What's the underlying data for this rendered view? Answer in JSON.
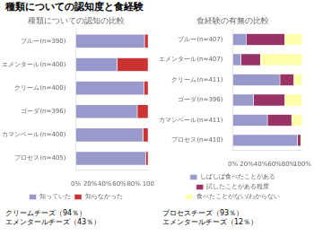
{
  "title": "種類についての認知度と食経験",
  "annotations": [
    "クリームチーズ（94％）\nエメンタールチーズ（43％）",
    "プロセスチーズ（93％）\nエメンタールチーズ（12％）"
  ],
  "chart_data": [
    {
      "type": "bar",
      "orientation": "horizontal",
      "stacked": true,
      "grid": false,
      "legend": "bottom",
      "title": "種類についての認知の比較",
      "categories": [
        "ブルー(n=390)",
        "エメンタール(n=400)",
        "クリーム(n=400)",
        "ゴーダ(n=396)",
        "カマンベール(n=400)",
        "プロセス(n=405)"
      ],
      "series": [
        {
          "name": "知っていた",
          "color": "#9999cc",
          "values": [
            95,
            57,
            94,
            85,
            93,
            97
          ]
        },
        {
          "name": "知らなかった",
          "color": "#cc3333",
          "values": [
            5,
            43,
            6,
            15,
            7,
            3
          ]
        }
      ],
      "xlim": [
        0,
        100
      ],
      "xticks": [
        {
          "value": 0,
          "label": "0%"
        },
        {
          "value": 20,
          "label": "20%"
        },
        {
          "value": 40,
          "label": "40%"
        },
        {
          "value": 60,
          "label": "60%"
        },
        {
          "value": 80,
          "label": "80%"
        },
        100
      ]
    },
    {
      "type": "bar",
      "orientation": "horizontal",
      "stacked": true,
      "grid": false,
      "legend": "bottom",
      "title": "食経験の有無の比較",
      "categories": [
        "ブルー(n=407)",
        "エメンタール(n=407)",
        "クリーム(n=411)",
        "ゴーダ(n=396)",
        "カマンベール(n=411)",
        "プロセス(n=410)"
      ],
      "series": [
        {
          "name": "しばしば食べたことがある",
          "color": "#9999cc",
          "values": [
            20,
            12,
            68,
            30,
            50,
            93
          ]
        },
        {
          "name": "試したことがある程度",
          "color": "#993366",
          "values": [
            55,
            28,
            20,
            45,
            35,
            5
          ]
        },
        {
          "name": "食べたことがない/わからない",
          "color": "#ffffaa",
          "values": [
            25,
            60,
            12,
            25,
            15,
            2
          ]
        }
      ],
      "xlim": [
        0,
        100
      ],
      "xticks": [
        {
          "value": 0,
          "label": "0%"
        },
        {
          "value": 20,
          "label": "20%"
        },
        {
          "value": 40,
          "label": "40%"
        },
        {
          "value": 60,
          "label": "60%"
        },
        {
          "value": 80,
          "label": "80%"
        },
        {
          "value": 100,
          "label": "100%"
        }
      ]
    }
  ]
}
